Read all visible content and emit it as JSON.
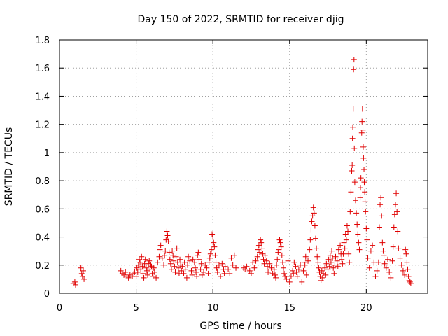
{
  "chart_data": {
    "type": "scatter",
    "title": "Day 150 of 2022, SRMTID for receiver djig",
    "xlabel": "GPS time / hours",
    "ylabel": "SRMTID / TECUs",
    "xlim": [
      0,
      24
    ],
    "ylim": [
      0,
      1.8
    ],
    "xticks": [
      0,
      5,
      10,
      15,
      20
    ],
    "xtick_labels": [
      "0",
      "5",
      "10",
      "15",
      "20"
    ],
    "yticks": [
      0,
      0.2,
      0.4,
      0.6,
      0.8,
      1.0,
      1.2,
      1.4,
      1.6,
      1.8
    ],
    "ytick_labels": [
      "0",
      "0.2",
      "0.4",
      "0.6",
      "0.8",
      "1",
      "1.2",
      "1.4",
      "1.6",
      "1.8"
    ],
    "grid": true,
    "marker": "+",
    "color": "#e00000",
    "series": [
      {
        "name": "SRMTID",
        "points": [
          [
            0.9,
            0.07
          ],
          [
            1.0,
            0.08
          ],
          [
            1.05,
            0.06
          ],
          [
            1.4,
            0.18
          ],
          [
            1.45,
            0.14
          ],
          [
            1.5,
            0.12
          ],
          [
            1.55,
            0.16
          ],
          [
            1.6,
            0.1
          ],
          [
            4.0,
            0.16
          ],
          [
            4.1,
            0.14
          ],
          [
            4.2,
            0.13
          ],
          [
            4.3,
            0.15
          ],
          [
            4.4,
            0.12
          ],
          [
            4.5,
            0.11
          ],
          [
            4.6,
            0.13
          ],
          [
            4.75,
            0.12
          ],
          [
            4.85,
            0.14
          ],
          [
            4.9,
            0.15
          ],
          [
            5.0,
            0.12
          ],
          [
            5.05,
            0.18
          ],
          [
            5.1,
            0.15
          ],
          [
            5.15,
            0.2
          ],
          [
            5.2,
            0.24
          ],
          [
            5.25,
            0.22
          ],
          [
            5.3,
            0.17
          ],
          [
            5.35,
            0.26
          ],
          [
            5.4,
            0.19
          ],
          [
            5.45,
            0.14
          ],
          [
            5.5,
            0.11
          ],
          [
            5.55,
            0.21
          ],
          [
            5.6,
            0.24
          ],
          [
            5.65,
            0.18
          ],
          [
            5.7,
            0.16
          ],
          [
            5.75,
            0.13
          ],
          [
            5.8,
            0.21
          ],
          [
            5.85,
            0.23
          ],
          [
            5.9,
            0.17
          ],
          [
            5.95,
            0.2
          ],
          [
            6.0,
            0.19
          ],
          [
            6.05,
            0.14
          ],
          [
            6.1,
            0.12
          ],
          [
            6.15,
            0.18
          ],
          [
            6.2,
            0.15
          ],
          [
            6.3,
            0.11
          ],
          [
            6.4,
            0.22
          ],
          [
            6.5,
            0.26
          ],
          [
            6.55,
            0.31
          ],
          [
            6.6,
            0.34
          ],
          [
            6.7,
            0.25
          ],
          [
            6.8,
            0.2
          ],
          [
            6.85,
            0.27
          ],
          [
            6.9,
            0.3
          ],
          [
            6.95,
            0.38
          ],
          [
            7.0,
            0.44
          ],
          [
            7.05,
            0.41
          ],
          [
            7.1,
            0.37
          ],
          [
            7.15,
            0.29
          ],
          [
            7.2,
            0.24
          ],
          [
            7.25,
            0.21
          ],
          [
            7.3,
            0.17
          ],
          [
            7.35,
            0.3
          ],
          [
            7.4,
            0.27
          ],
          [
            7.45,
            0.23
          ],
          [
            7.5,
            0.19
          ],
          [
            7.55,
            0.15
          ],
          [
            7.6,
            0.26
          ],
          [
            7.65,
            0.32
          ],
          [
            7.7,
            0.22
          ],
          [
            7.75,
            0.18
          ],
          [
            7.8,
            0.14
          ],
          [
            7.85,
            0.24
          ],
          [
            7.9,
            0.2
          ],
          [
            7.95,
            0.16
          ],
          [
            8.0,
            0.19
          ],
          [
            8.1,
            0.14
          ],
          [
            8.15,
            0.22
          ],
          [
            8.2,
            0.17
          ],
          [
            8.3,
            0.11
          ],
          [
            8.35,
            0.2
          ],
          [
            8.4,
            0.26
          ],
          [
            8.5,
            0.23
          ],
          [
            8.6,
            0.16
          ],
          [
            8.65,
            0.13
          ],
          [
            8.7,
            0.24
          ],
          [
            8.8,
            0.22
          ],
          [
            8.85,
            0.18
          ],
          [
            8.9,
            0.15
          ],
          [
            8.95,
            0.12
          ],
          [
            9.0,
            0.27
          ],
          [
            9.05,
            0.29
          ],
          [
            9.1,
            0.24
          ],
          [
            9.2,
            0.17
          ],
          [
            9.25,
            0.21
          ],
          [
            9.3,
            0.13
          ],
          [
            9.4,
            0.15
          ],
          [
            9.5,
            0.2
          ],
          [
            9.6,
            0.18
          ],
          [
            9.7,
            0.14
          ],
          [
            9.75,
            0.22
          ],
          [
            9.8,
            0.25
          ],
          [
            9.85,
            0.28
          ],
          [
            9.9,
            0.31
          ],
          [
            9.95,
            0.42
          ],
          [
            10.0,
            0.4
          ],
          [
            10.05,
            0.36
          ],
          [
            10.1,
            0.33
          ],
          [
            10.15,
            0.27
          ],
          [
            10.2,
            0.22
          ],
          [
            10.25,
            0.18
          ],
          [
            10.3,
            0.15
          ],
          [
            10.4,
            0.2
          ],
          [
            10.5,
            0.12
          ],
          [
            10.6,
            0.21
          ],
          [
            10.7,
            0.17
          ],
          [
            10.75,
            0.14
          ],
          [
            10.8,
            0.19
          ],
          [
            11.0,
            0.17
          ],
          [
            11.1,
            0.14
          ],
          [
            11.2,
            0.25
          ],
          [
            11.3,
            0.2
          ],
          [
            11.4,
            0.27
          ],
          [
            11.5,
            0.18
          ],
          [
            12.0,
            0.18
          ],
          [
            12.1,
            0.17
          ],
          [
            12.2,
            0.19
          ],
          [
            12.4,
            0.16
          ],
          [
            12.5,
            0.14
          ],
          [
            12.6,
            0.22
          ],
          [
            12.7,
            0.18
          ],
          [
            12.8,
            0.23
          ],
          [
            12.9,
            0.26
          ],
          [
            12.95,
            0.31
          ],
          [
            13.0,
            0.34
          ],
          [
            13.05,
            0.29
          ],
          [
            13.1,
            0.38
          ],
          [
            13.15,
            0.36
          ],
          [
            13.2,
            0.32
          ],
          [
            13.25,
            0.28
          ],
          [
            13.3,
            0.24
          ],
          [
            13.35,
            0.21
          ],
          [
            13.4,
            0.27
          ],
          [
            13.5,
            0.23
          ],
          [
            13.55,
            0.19
          ],
          [
            13.6,
            0.15
          ],
          [
            13.7,
            0.21
          ],
          [
            13.8,
            0.18
          ],
          [
            13.9,
            0.14
          ],
          [
            14.0,
            0.17
          ],
          [
            14.05,
            0.13
          ],
          [
            14.1,
            0.11
          ],
          [
            14.15,
            0.2
          ],
          [
            14.2,
            0.24
          ],
          [
            14.25,
            0.29
          ],
          [
            14.3,
            0.31
          ],
          [
            14.35,
            0.38
          ],
          [
            14.4,
            0.36
          ],
          [
            14.45,
            0.33
          ],
          [
            14.5,
            0.27
          ],
          [
            14.55,
            0.22
          ],
          [
            14.6,
            0.18
          ],
          [
            14.65,
            0.14
          ],
          [
            14.7,
            0.12
          ],
          [
            14.8,
            0.1
          ],
          [
            14.9,
            0.23
          ],
          [
            15.0,
            0.08
          ],
          [
            15.1,
            0.12
          ],
          [
            15.2,
            0.16
          ],
          [
            15.25,
            0.14
          ],
          [
            15.3,
            0.22
          ],
          [
            15.4,
            0.19
          ],
          [
            15.45,
            0.15
          ],
          [
            15.5,
            0.12
          ],
          [
            15.6,
            0.17
          ],
          [
            15.7,
            0.2
          ],
          [
            15.8,
            0.08
          ],
          [
            15.9,
            0.16
          ],
          [
            15.95,
            0.22
          ],
          [
            16.0,
            0.2
          ],
          [
            16.05,
            0.26
          ],
          [
            16.1,
            0.13
          ],
          [
            16.2,
            0.23
          ],
          [
            16.3,
            0.31
          ],
          [
            16.35,
            0.38
          ],
          [
            16.4,
            0.45
          ],
          [
            16.45,
            0.51
          ],
          [
            16.5,
            0.55
          ],
          [
            16.55,
            0.61
          ],
          [
            16.6,
            0.57
          ],
          [
            16.65,
            0.48
          ],
          [
            16.7,
            0.39
          ],
          [
            16.75,
            0.32
          ],
          [
            16.8,
            0.26
          ],
          [
            16.85,
            0.22
          ],
          [
            16.9,
            0.18
          ],
          [
            16.95,
            0.15
          ],
          [
            17.0,
            0.12
          ],
          [
            17.05,
            0.09
          ],
          [
            17.1,
            0.16
          ],
          [
            17.15,
            0.11
          ],
          [
            17.2,
            0.14
          ],
          [
            17.3,
            0.18
          ],
          [
            17.35,
            0.13
          ],
          [
            17.4,
            0.21
          ],
          [
            17.5,
            0.17
          ],
          [
            17.55,
            0.24
          ],
          [
            17.6,
            0.19
          ],
          [
            17.65,
            0.27
          ],
          [
            17.7,
            0.22
          ],
          [
            17.75,
            0.3
          ],
          [
            17.8,
            0.25
          ],
          [
            17.85,
            0.18
          ],
          [
            17.9,
            0.14
          ],
          [
            17.95,
            0.2
          ],
          [
            18.0,
            0.26
          ],
          [
            18.1,
            0.23
          ],
          [
            18.15,
            0.19
          ],
          [
            18.2,
            0.31
          ],
          [
            18.3,
            0.34
          ],
          [
            18.35,
            0.28
          ],
          [
            18.4,
            0.24
          ],
          [
            18.45,
            0.21
          ],
          [
            18.5,
            0.28
          ],
          [
            18.55,
            0.36
          ],
          [
            18.6,
            0.32
          ],
          [
            18.65,
            0.42
          ],
          [
            18.7,
            0.38
          ],
          [
            18.75,
            0.48
          ],
          [
            18.8,
            0.44
          ],
          [
            18.85,
            0.28
          ],
          [
            18.9,
            0.22
          ],
          [
            18.95,
            0.58
          ],
          [
            19.0,
            0.72
          ],
          [
            19.05,
            0.87
          ],
          [
            19.08,
            0.91
          ],
          [
            19.1,
            1.1
          ],
          [
            19.12,
            1.18
          ],
          [
            19.15,
            1.31
          ],
          [
            19.17,
            1.59
          ],
          [
            19.2,
            1.66
          ],
          [
            19.22,
            1.03
          ],
          [
            19.25,
            0.79
          ],
          [
            19.3,
            0.66
          ],
          [
            19.35,
            0.57
          ],
          [
            19.4,
            0.49
          ],
          [
            19.45,
            0.42
          ],
          [
            19.5,
            0.36
          ],
          [
            19.55,
            0.31
          ],
          [
            19.6,
            0.68
          ],
          [
            19.62,
            0.75
          ],
          [
            19.65,
            0.82
          ],
          [
            19.7,
            1.14
          ],
          [
            19.72,
            1.22
          ],
          [
            19.75,
            1.31
          ],
          [
            19.78,
            1.16
          ],
          [
            19.8,
            1.04
          ],
          [
            19.82,
            0.96
          ],
          [
            19.85,
            0.88
          ],
          [
            19.87,
            0.79
          ],
          [
            19.9,
            0.72
          ],
          [
            19.92,
            0.65
          ],
          [
            19.95,
            0.58
          ],
          [
            20.0,
            0.46
          ],
          [
            20.05,
            0.38
          ],
          [
            20.1,
            0.25
          ],
          [
            20.2,
            0.18
          ],
          [
            20.3,
            0.3
          ],
          [
            20.4,
            0.34
          ],
          [
            20.5,
            0.22
          ],
          [
            20.6,
            0.12
          ],
          [
            20.7,
            0.16
          ],
          [
            20.8,
            0.22
          ],
          [
            20.85,
            0.47
          ],
          [
            20.9,
            0.63
          ],
          [
            20.95,
            0.68
          ],
          [
            21.0,
            0.55
          ],
          [
            21.05,
            0.36
          ],
          [
            21.1,
            0.3
          ],
          [
            21.15,
            0.27
          ],
          [
            21.2,
            0.21
          ],
          [
            21.3,
            0.18
          ],
          [
            21.4,
            0.24
          ],
          [
            21.5,
            0.15
          ],
          [
            21.6,
            0.11
          ],
          [
            21.7,
            0.23
          ],
          [
            21.75,
            0.33
          ],
          [
            21.8,
            0.47
          ],
          [
            21.85,
            0.56
          ],
          [
            21.9,
            0.63
          ],
          [
            21.95,
            0.71
          ],
          [
            22.0,
            0.58
          ],
          [
            22.05,
            0.44
          ],
          [
            22.1,
            0.32
          ],
          [
            22.2,
            0.25
          ],
          [
            22.3,
            0.2
          ],
          [
            22.4,
            0.16
          ],
          [
            22.5,
            0.13
          ],
          [
            22.55,
            0.31
          ],
          [
            22.6,
            0.28
          ],
          [
            22.65,
            0.22
          ],
          [
            22.7,
            0.17
          ],
          [
            22.75,
            0.12
          ],
          [
            22.8,
            0.09
          ],
          [
            22.85,
            0.08
          ],
          [
            22.9,
            0.07
          ]
        ]
      }
    ]
  }
}
